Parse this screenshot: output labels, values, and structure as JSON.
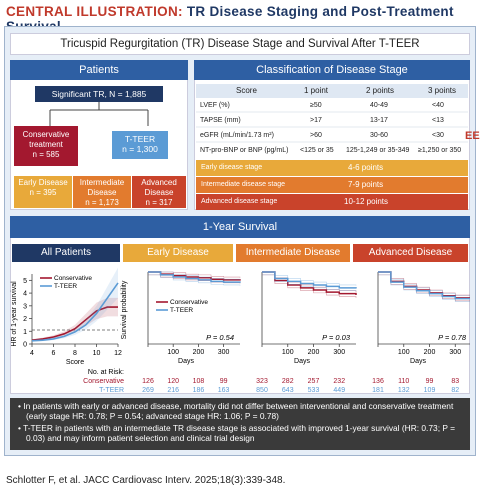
{
  "header": {
    "prefix": "CENTRAL ILLUSTRATION:",
    "title": "TR Disease Staging and Post-Treatment Survival"
  },
  "top_title": "Tricuspid Regurgitation (TR) Disease Stage and Survival After T-TEER",
  "patients": {
    "heading": "Patients",
    "significant": "Significant TR, N = 1,885",
    "conservative_label": "Conservative treatment",
    "conservative_n": "n = 585",
    "tteer_label": "T-TEER",
    "tteer_n": "n = 1,300",
    "early_label": "Early Disease",
    "early_n": "n = 395",
    "intermediate_label": "Intermediate Disease",
    "intermediate_n": "n = 1,173",
    "advanced_label": "Advanced Disease",
    "advanced_n": "n = 317"
  },
  "classification": {
    "heading": "Classification of Disease Stage",
    "columns": [
      "Score",
      "1 point",
      "2 points",
      "3 points"
    ],
    "rows": [
      [
        "LVEF (%)",
        "≥50",
        "40-49",
        "<40"
      ],
      [
        "TAPSE (mm)",
        ">17",
        "13-17",
        "<13"
      ],
      [
        "eGFR (mL/min/1.73 m²)",
        ">60",
        "30-60",
        "<30"
      ],
      [
        "NT-pro-BNP or BNP (pg/mL)",
        "<125 or 35",
        "125-1,249 or 35-349",
        "≥1,250 or 350"
      ]
    ],
    "stages": [
      {
        "name": "Early disease stage",
        "points": "4-6 points",
        "color": "#e8a93a"
      },
      {
        "name": "Intermediate disease stage",
        "points": "7-9 points",
        "color": "#e27b2e"
      },
      {
        "name": "Advanced disease stage",
        "points": "10-12 points",
        "color": "#c9432b"
      }
    ]
  },
  "survival": {
    "heading": "1-Year Survival",
    "panels": [
      "All Patients",
      "Early Disease",
      "Intermediate Disease",
      "Advanced Disease"
    ],
    "hr_ylabel": "HR of 1-year survival",
    "hr_xlabel": "Score",
    "km_ylabel": "Survival probability",
    "km_xlabel": "Days",
    "legend_conservative": "Conservative",
    "legend_tteer": "T-TEER",
    "p_early": "P = 0.54",
    "p_intermediate": "P = 0.03",
    "p_advanced": "P = 0.78",
    "at_risk_title": "No. at Risk:",
    "at_risk_conservative_label": "Conservative",
    "at_risk_tteer_label": "T-TEER",
    "at_risk": {
      "early_cons": [
        "126",
        "120",
        "108",
        "99"
      ],
      "early_tteer": [
        "269",
        "216",
        "186",
        "163"
      ],
      "inter_cons": [
        "323",
        "282",
        "257",
        "232"
      ],
      "inter_tteer": [
        "850",
        "643",
        "533",
        "449"
      ],
      "adv_cons": [
        "136",
        "110",
        "99",
        "83"
      ],
      "adv_tteer": [
        "181",
        "132",
        "109",
        "82"
      ]
    }
  },
  "chart_data": [
    {
      "type": "line",
      "title": "All Patients",
      "xlabel": "Score",
      "ylabel": "HR of 1-year survival",
      "x_ticks": [
        4,
        6,
        8,
        10,
        12
      ],
      "y_ticks": [
        0,
        1,
        2,
        3,
        4,
        5
      ],
      "xlim": [
        4,
        12
      ],
      "ylim": [
        0,
        5.5
      ],
      "series": [
        {
          "name": "Conservative",
          "color": "#a3182f",
          "x": [
            4,
            5,
            6,
            7,
            8,
            9,
            10,
            11,
            12
          ],
          "y": [
            0.3,
            0.4,
            0.55,
            0.8,
            1.2,
            1.9,
            2.6,
            2.9,
            2.9
          ]
        },
        {
          "name": "T-TEER",
          "color": "#5b9bd5",
          "x": [
            4,
            5,
            6,
            7,
            8,
            9,
            10,
            11,
            12
          ],
          "y": [
            0.25,
            0.3,
            0.4,
            0.6,
            0.95,
            1.5,
            2.4,
            3.6,
            4.8
          ]
        }
      ]
    },
    {
      "type": "line",
      "title": "Early Disease",
      "xlabel": "Days",
      "ylabel": "Survival probability",
      "x_ticks": [
        0,
        100,
        200,
        300
      ],
      "y_ticks": [
        0.0,
        0.2,
        0.4,
        0.6,
        0.8,
        1.0
      ],
      "xlim": [
        0,
        365
      ],
      "ylim": [
        0,
        1
      ],
      "series": [
        {
          "name": "Conservative",
          "color": "#a3182f",
          "x": [
            0,
            50,
            100,
            150,
            200,
            250,
            300,
            365
          ],
          "y": [
            1.0,
            0.97,
            0.95,
            0.93,
            0.92,
            0.9,
            0.89,
            0.88
          ]
        },
        {
          "name": "T-TEER",
          "color": "#5b9bd5",
          "x": [
            0,
            50,
            100,
            150,
            200,
            250,
            300,
            365
          ],
          "y": [
            1.0,
            0.96,
            0.93,
            0.91,
            0.89,
            0.87,
            0.86,
            0.85
          ]
        }
      ]
    },
    {
      "type": "line",
      "title": "Intermediate Disease",
      "xlabel": "Days",
      "x_ticks": [
        0,
        100,
        200,
        300
      ],
      "xlim": [
        0,
        365
      ],
      "ylim": [
        0,
        1
      ],
      "series": [
        {
          "name": "Conservative",
          "color": "#a3182f",
          "x": [
            0,
            50,
            100,
            150,
            200,
            250,
            300,
            365
          ],
          "y": [
            1.0,
            0.88,
            0.82,
            0.78,
            0.75,
            0.72,
            0.7,
            0.68
          ]
        },
        {
          "name": "T-TEER",
          "color": "#5b9bd5",
          "x": [
            0,
            50,
            100,
            150,
            200,
            250,
            300,
            365
          ],
          "y": [
            1.0,
            0.91,
            0.87,
            0.84,
            0.82,
            0.8,
            0.78,
            0.77
          ]
        }
      ]
    },
    {
      "type": "line",
      "title": "Advanced Disease",
      "xlabel": "Days",
      "x_ticks": [
        0,
        100,
        200,
        300
      ],
      "xlim": [
        0,
        365
      ],
      "ylim": [
        0,
        1
      ],
      "series": [
        {
          "name": "Conservative",
          "color": "#a3182f",
          "x": [
            0,
            50,
            100,
            150,
            200,
            250,
            300,
            365
          ],
          "y": [
            1.0,
            0.87,
            0.8,
            0.75,
            0.71,
            0.67,
            0.64,
            0.61
          ]
        },
        {
          "name": "T-TEER",
          "color": "#5b9bd5",
          "x": [
            0,
            50,
            100,
            150,
            200,
            250,
            300,
            365
          ],
          "y": [
            1.0,
            0.86,
            0.79,
            0.74,
            0.7,
            0.66,
            0.63,
            0.6
          ]
        }
      ]
    }
  ],
  "bullets": [
    "In patients with early or advanced disease, mortality did not differ between interventional and conservative treatment (early stage HR: 0.78; P = 0.54; advanced stage HR: 1.06; P = 0.78)",
    "T-TEER in patients with an intermediate TR disease stage is associated with improved 1-year survival (HR: 0.73; P = 0.03) and may inform patient selection and clinical trial design"
  ],
  "citation": "Schlotter F, et al. JACC Cardiovasc Interv. 2025;18(3):339-348.",
  "edge_mark": "EE"
}
